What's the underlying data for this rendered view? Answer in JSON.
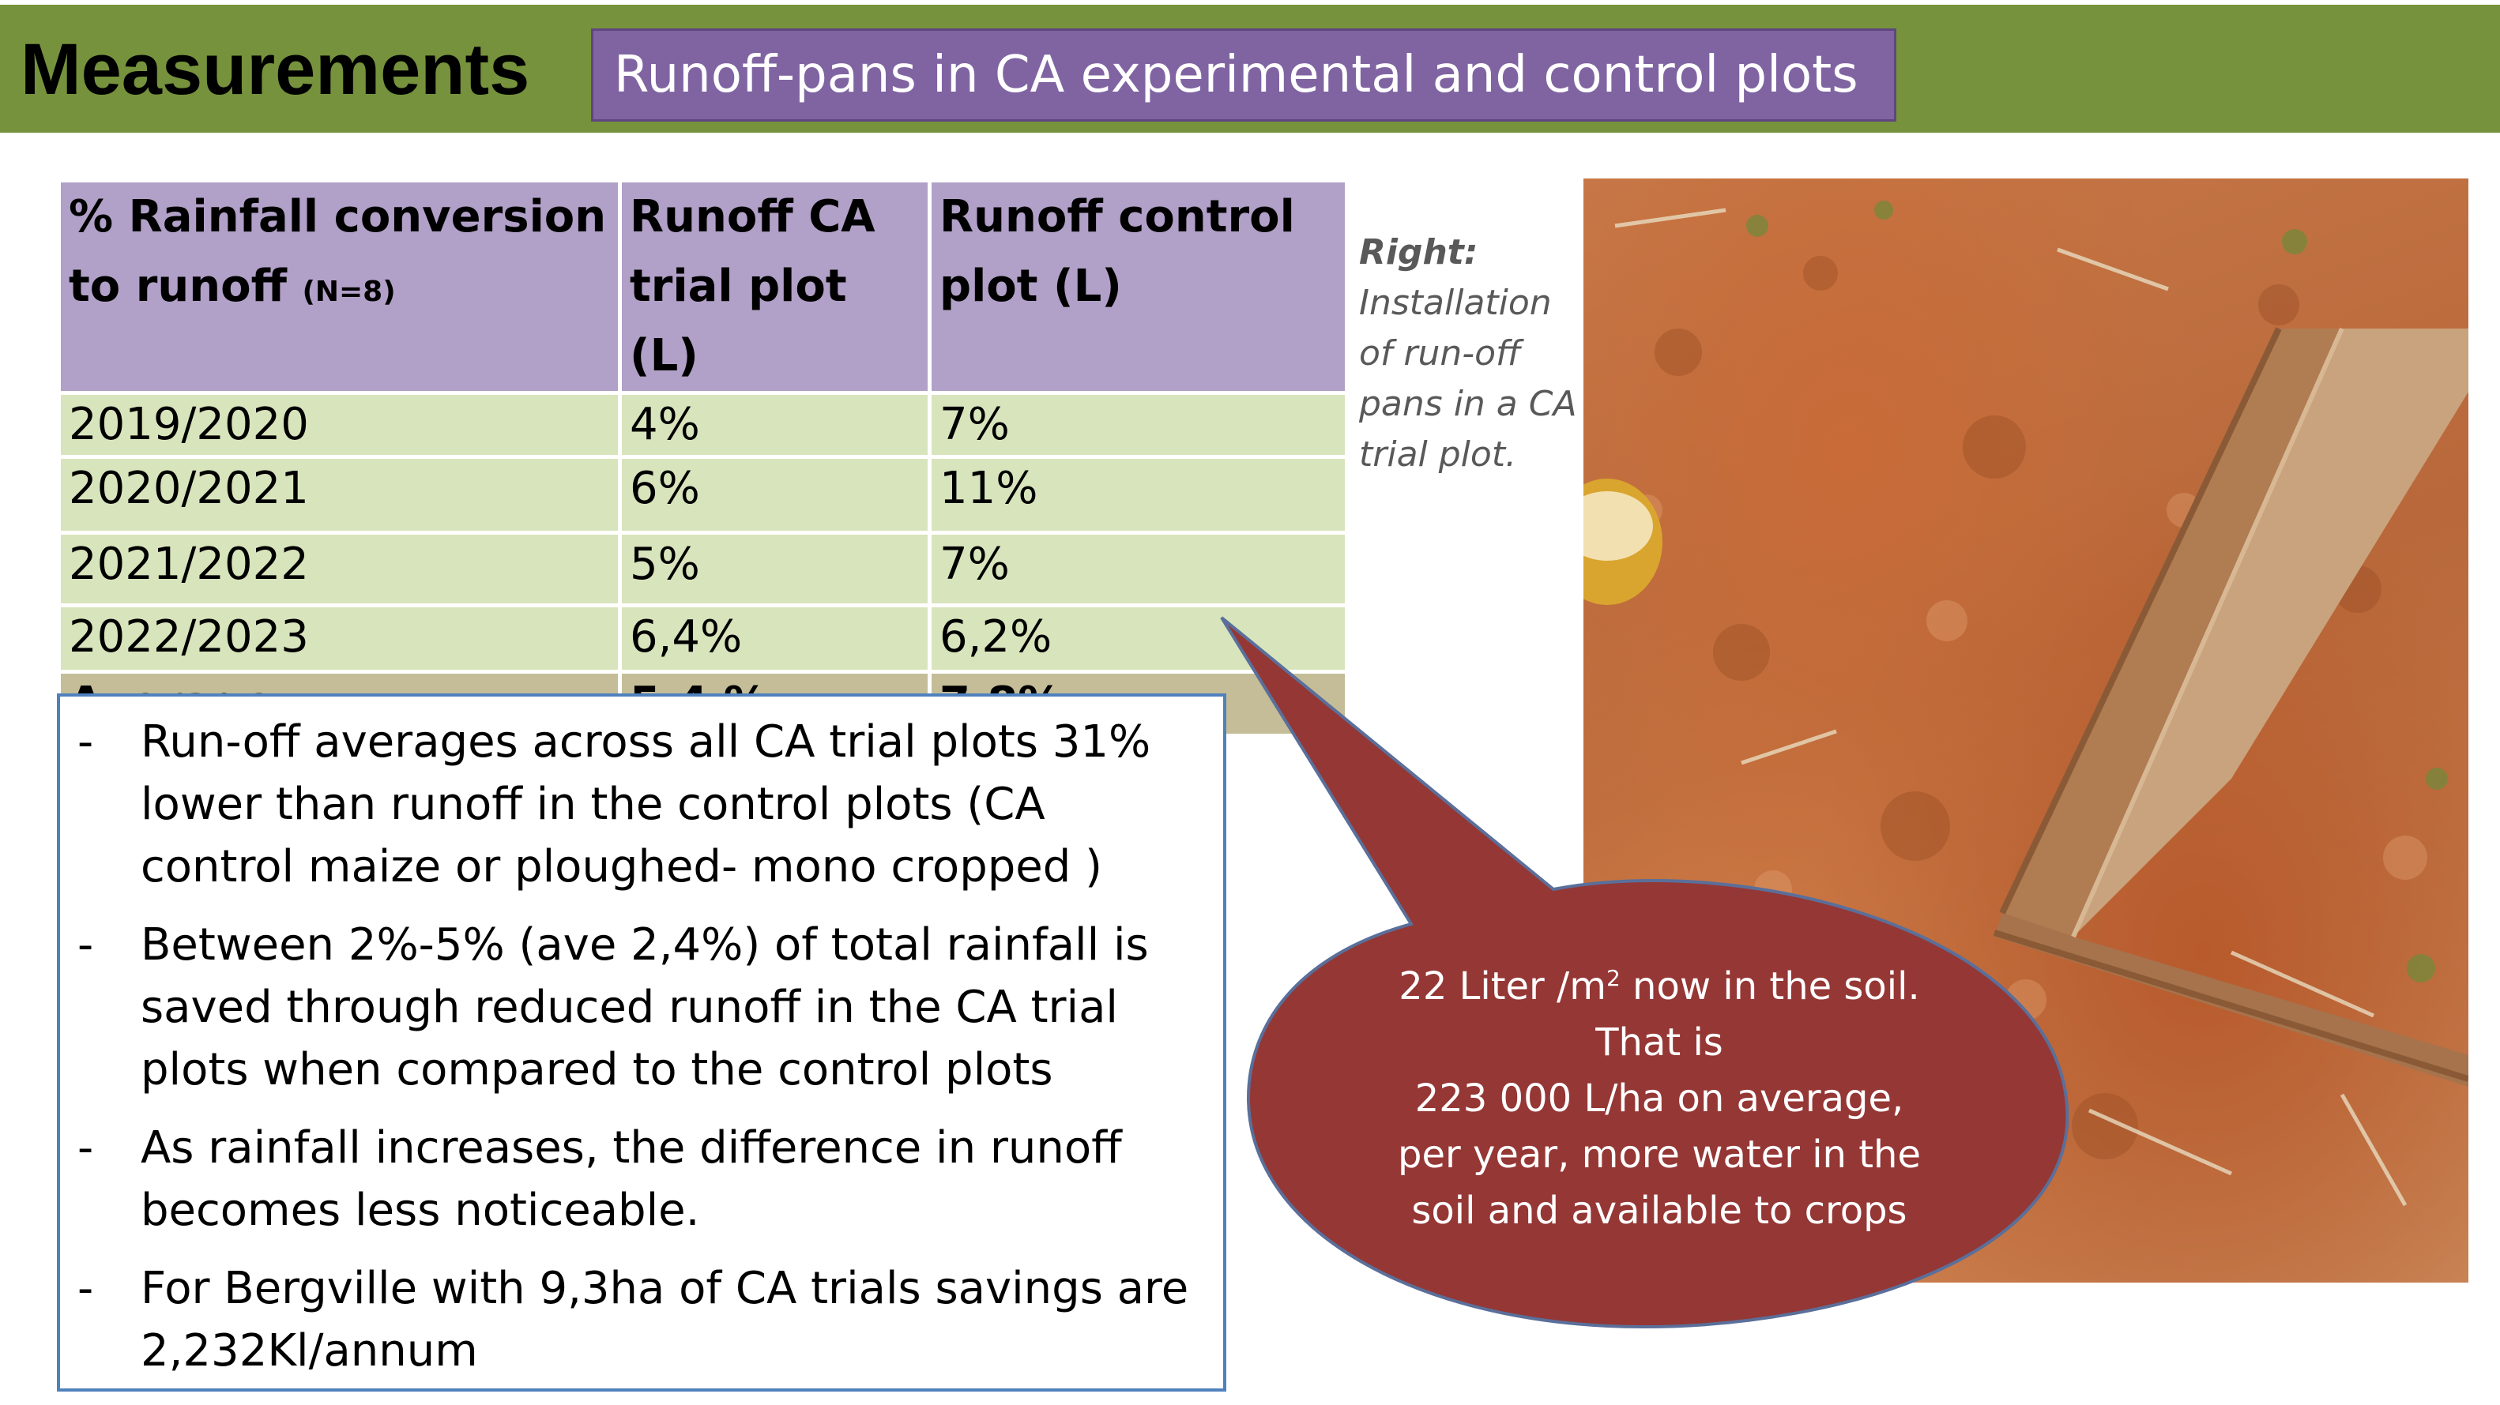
{
  "header": {
    "title": "Measurements",
    "subtitle": "Runoff-pans in CA experimental and control plots"
  },
  "table": {
    "headers": [
      "% Rainfall conversion to runoff",
      "Runoff CA trial plot (L)",
      "Runoff control plot (L)"
    ],
    "header_note": "(N=8)",
    "rows": [
      [
        "2019/2020",
        "4%",
        "7%"
      ],
      [
        "2020/2021",
        "6%",
        "11%"
      ],
      [
        "2021/2022",
        "5%",
        "7%"
      ],
      [
        "2022/2023",
        "6,4%",
        "6,2%"
      ]
    ],
    "average": [
      "Average",
      "5,4 %",
      "7,8%"
    ]
  },
  "bullets": {
    "marker": "-",
    "items": [
      "Run-off  averages across all CA trial plots 31% lower than runoff in the control plots (CA control maize or ploughed- mono cropped )",
      "Between 2%-5% (ave 2,4%) of total rainfall is saved through reduced runoff in the CA trial plots when compared to the control plots",
      "As rainfall increases, the difference in runoff becomes less noticeable.",
      "For Bergville with 9,3ha of CA trials savings are 2,232Kl/annum"
    ]
  },
  "caption": {
    "head": "Right:",
    "text": "Installation of run-off pans in a CA trial plot."
  },
  "callout": {
    "line1_pre": "22 Liter /m",
    "line1_sup": "2",
    "line1_post": "  now in the soil.",
    "line2": "That is",
    "line3": "223 000 L/ha  on average,",
    "line4": "per year, more water in the",
    "line5": "soil and available to crops"
  },
  "colors": {
    "header_bg": "#76923c",
    "subtitle_bg": "#8064a2",
    "table_header": "#b1a0c7",
    "table_row": "#d8e4bc",
    "table_avg": "#c4bd97",
    "callout": "#953735",
    "box_border": "#4f81bd"
  }
}
